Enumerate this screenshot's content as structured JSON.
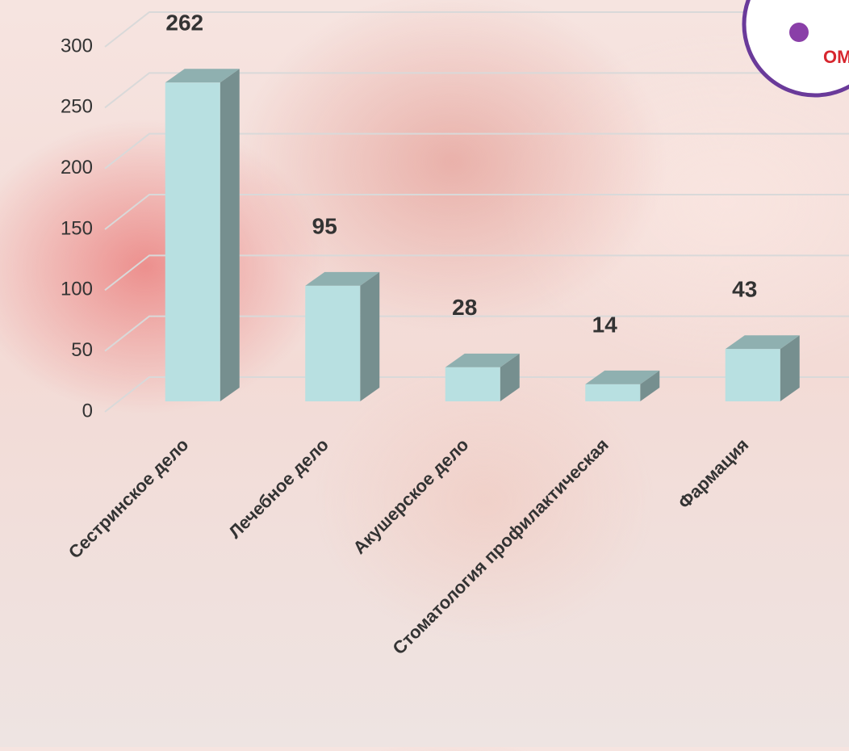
{
  "chart_data": {
    "type": "bar3d",
    "categories": [
      "Сестринское дело",
      "Лечебное дело",
      "Акушерское дело",
      "Стоматология профилактическая",
      "Фармация"
    ],
    "values": [
      262,
      95,
      28,
      14,
      43
    ],
    "color": "#b8e0e1",
    "ylim": [
      0,
      300
    ],
    "yticks": [
      0,
      50,
      100,
      150,
      200,
      250,
      300
    ],
    "grid": true
  },
  "logo": {
    "text": "OMPA"
  }
}
